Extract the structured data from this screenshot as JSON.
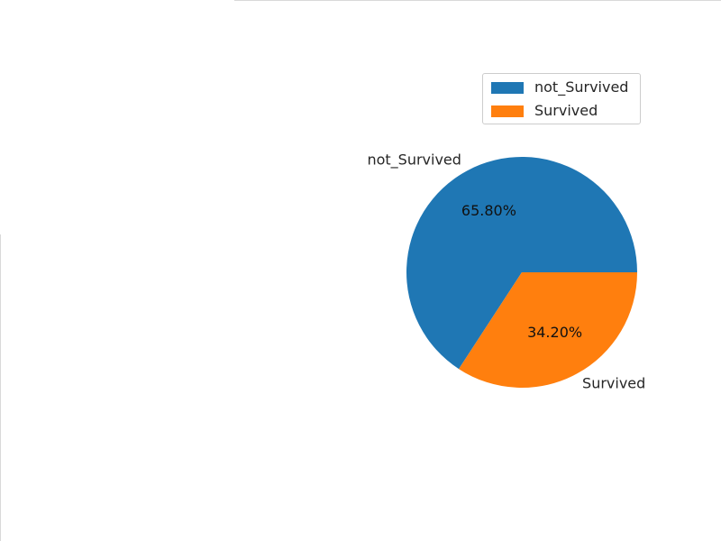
{
  "chart_data": {
    "type": "pie",
    "title": "",
    "slices": [
      {
        "label": "not_Survived",
        "value": 65.8,
        "pct_label": "65.80%",
        "color": "#1f77b4"
      },
      {
        "label": "Survived",
        "value": 34.2,
        "pct_label": "34.20%",
        "color": "#ff7f0e"
      }
    ],
    "start_angle": 0,
    "direction": "counterclockwise",
    "legend": {
      "placement": "top-right",
      "entries": [
        "not_Survived",
        "Survived"
      ]
    }
  }
}
